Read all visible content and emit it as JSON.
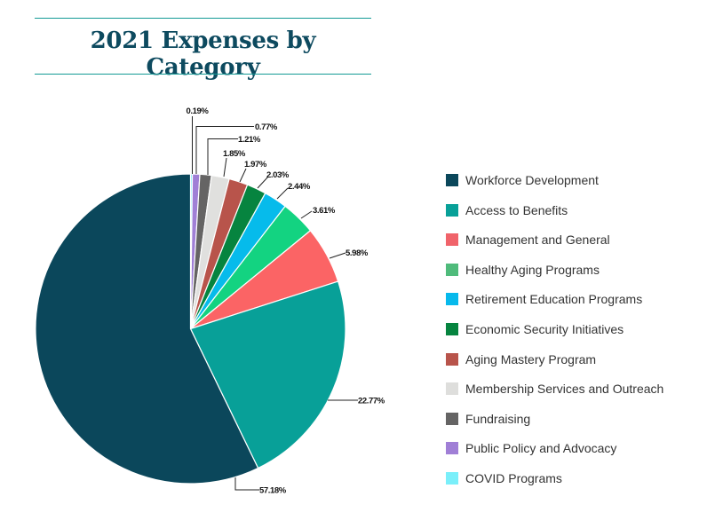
{
  "chart_data": {
    "type": "pie",
    "title": "2021 Expenses by Category",
    "direction": "clockwise from top, reverse legend order",
    "legend_position": "right",
    "label_suffix": "%",
    "slices": [
      {
        "name": "Workforce Development",
        "value": 57.18,
        "label": "57.18%",
        "color": "#0b475b",
        "legend_color": "#0b475b"
      },
      {
        "name": "Access to Benefits",
        "value": 22.77,
        "label": "22.77%",
        "color": "#08a098",
        "legend_color": "#08a098"
      },
      {
        "name": "Management and General",
        "value": 5.98,
        "label": "5.98%",
        "color": "#fb6465",
        "legend_color": "#f0636a"
      },
      {
        "name": "Healthy Aging Programs",
        "value": 3.61,
        "label": "3.61%",
        "color": "#13d381",
        "legend_color": "#4fbb7b"
      },
      {
        "name": "Retirement Education Programs",
        "value": 2.44,
        "label": "2.44%",
        "color": "#06bbeb",
        "legend_color": "#07b9ec"
      },
      {
        "name": "Economic Security Initiatives",
        "value": 2.03,
        "label": "2.03%",
        "color": "#06843f",
        "legend_color": "#06843f"
      },
      {
        "name": "Aging Mastery Program",
        "value": 1.97,
        "label": "1.97%",
        "color": "#b8544b",
        "legend_color": "#b8544b"
      },
      {
        "name": "Membership Services and Outreach",
        "value": 1.85,
        "label": "1.85%",
        "color": "#e0e0de",
        "legend_color": "#dededc"
      },
      {
        "name": "Fundraising",
        "value": 1.21,
        "label": "1.21%",
        "color": "#656464",
        "legend_color": "#656464"
      },
      {
        "name": "Public Policy and Advocacy",
        "value": 0.77,
        "label": "0.77%",
        "color": "#a07fd6",
        "legend_color": "#a07fd6"
      },
      {
        "name": "COVID Programs",
        "value": 0.19,
        "label": "0.19%",
        "color": "#72eefc",
        "legend_color": "#7aeffa"
      }
    ]
  }
}
